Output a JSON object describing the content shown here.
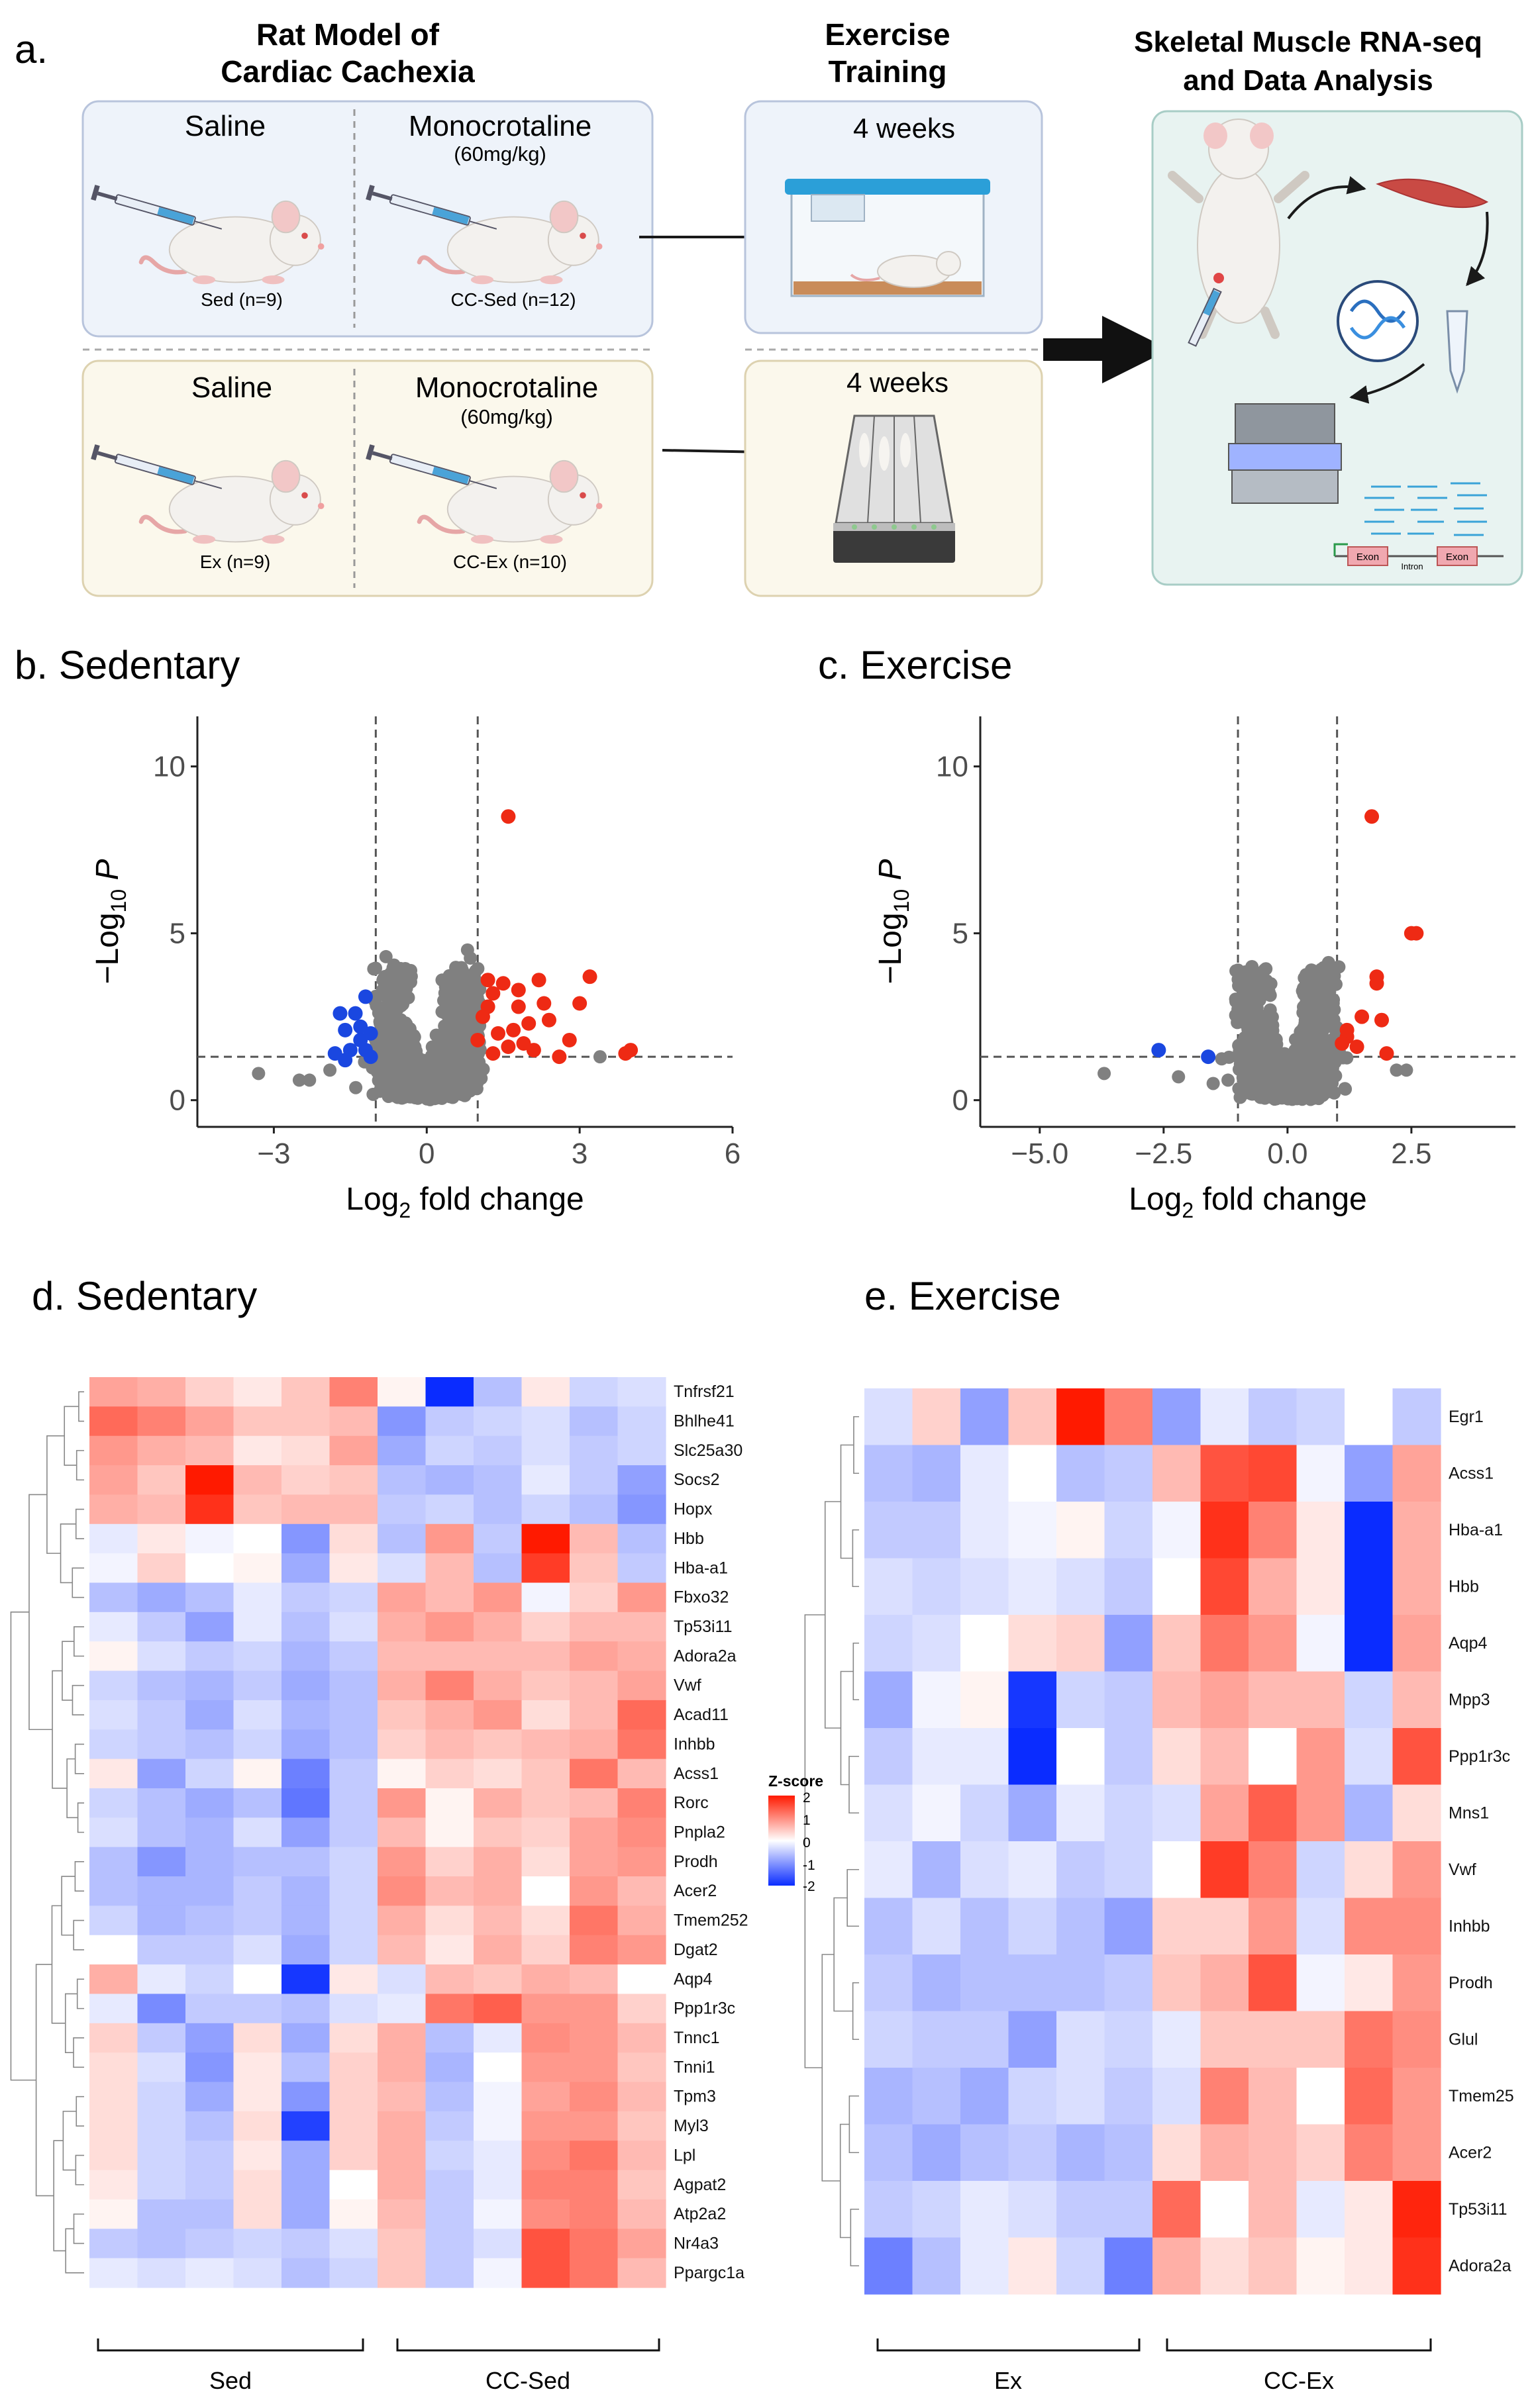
{
  "panel_a": {
    "label": "a.",
    "title_model": "Rat Model of\nCardiac Cachexia",
    "title_exercise": "Exercise\nTraining",
    "title_rnaseq": "Skeletal Muscle RNA-seq\nand Data Analysis",
    "top": {
      "left_name": "Saline",
      "left_n": "Sed (n=9)",
      "right_name": "Monocrotaline",
      "right_dose": "(60mg/kg)",
      "right_n": "CC-Sed (n=12)",
      "weeks": "4 weeks"
    },
    "bottom": {
      "left_name": "Saline",
      "left_n": "Ex (n=9)",
      "right_name": "Monocrotaline",
      "right_dose": "(60mg/kg)",
      "right_n": "CC-Ex (n=10)",
      "weeks": "4 weeks"
    },
    "exon_label": "Exon",
    "intron_label": "Intron",
    "colors": {
      "top_fill": "#eef3fa",
      "top_border": "#b8c4dc",
      "bottom_fill": "#fbf8ec",
      "bottom_border": "#ddd2b0",
      "right_fill": "#e8f3f1",
      "right_border": "#a8cdc6"
    }
  },
  "panel_b": {
    "label": "b. Sedentary"
  },
  "panel_c": {
    "label": "c. Exercise"
  },
  "panel_d": {
    "label": "d. Sedentary",
    "group1": "Sed",
    "group2": "CC-Sed"
  },
  "panel_e": {
    "label": "e. Exercise",
    "group1": "Ex",
    "group2": "CC-Ex"
  },
  "chart_data": [
    {
      "id": "volcano_sedentary",
      "type": "scatter",
      "xlabel": "Log2 fold change",
      "ylabel": "-Log10 P",
      "xlim": [
        -4.5,
        6
      ],
      "ylim": [
        -0.8,
        11.5
      ],
      "xticks": [
        -3,
        0,
        3,
        6
      ],
      "yticks": [
        0,
        5,
        10
      ],
      "vlines": [
        -1,
        1
      ],
      "hline": 1.3,
      "colors": {
        "ns": "#808080",
        "down": "#1a47e0",
        "up": "#ee2a14"
      },
      "down_points": [
        [
          -1.4,
          2.6
        ],
        [
          -1.2,
          3.1
        ],
        [
          -1.6,
          2.1
        ],
        [
          -1.3,
          1.8
        ],
        [
          -1.5,
          1.5
        ],
        [
          -1.8,
          1.4
        ],
        [
          -1.2,
          1.5
        ],
        [
          -1.1,
          2.0
        ],
        [
          -1.7,
          2.6
        ],
        [
          -1.3,
          2.2
        ],
        [
          -1.6,
          1.2
        ],
        [
          -1.1,
          1.3
        ]
      ],
      "up_points": [
        [
          1.6,
          8.5
        ],
        [
          3.2,
          3.7
        ],
        [
          3.0,
          2.9
        ],
        [
          4.0,
          1.5
        ],
        [
          3.9,
          1.4
        ],
        [
          2.2,
          3.6
        ],
        [
          2.3,
          2.9
        ],
        [
          1.5,
          3.5
        ],
        [
          1.3,
          3.2
        ],
        [
          1.8,
          2.8
        ],
        [
          2.0,
          2.3
        ],
        [
          1.1,
          2.5
        ],
        [
          1.2,
          3.6
        ],
        [
          1.7,
          2.1
        ],
        [
          1.4,
          2.0
        ],
        [
          1.9,
          1.7
        ],
        [
          2.1,
          1.5
        ],
        [
          2.6,
          1.3
        ],
        [
          2.8,
          1.8
        ],
        [
          1.0,
          1.8
        ],
        [
          1.3,
          1.4
        ],
        [
          1.6,
          1.6
        ],
        [
          2.4,
          2.4
        ],
        [
          1.2,
          2.8
        ],
        [
          1.8,
          3.3
        ]
      ],
      "ns_extra": [
        [
          -3.3,
          0.8
        ],
        [
          -2.5,
          0.6
        ],
        [
          -2.3,
          0.6
        ],
        [
          -1.9,
          0.9
        ],
        [
          3.4,
          1.3
        ],
        [
          -0.8,
          4.3
        ],
        [
          0.8,
          4.5
        ],
        [
          -0.6,
          3.8
        ],
        [
          0.6,
          3.9
        ]
      ]
    },
    {
      "id": "volcano_exercise",
      "type": "scatter",
      "xlabel": "Log2 fold change",
      "ylabel": "-Log10 P",
      "xlim": [
        -6.2,
        4.6
      ],
      "ylim": [
        -0.8,
        11.5
      ],
      "xticks": [
        -5.0,
        -2.5,
        0.0,
        2.5
      ],
      "yticks": [
        0,
        5,
        10
      ],
      "vlines": [
        -1,
        1
      ],
      "hline": 1.3,
      "colors": {
        "ns": "#808080",
        "down": "#1a47e0",
        "up": "#ee2a14"
      },
      "down_points": [
        [
          -2.6,
          1.5
        ],
        [
          -1.6,
          1.3
        ]
      ],
      "up_points": [
        [
          1.7,
          8.5
        ],
        [
          2.5,
          5.0
        ],
        [
          2.6,
          5.0
        ],
        [
          1.8,
          3.7
        ],
        [
          1.8,
          3.5
        ],
        [
          1.5,
          2.5
        ],
        [
          1.9,
          2.4
        ],
        [
          1.2,
          1.9
        ],
        [
          1.4,
          1.6
        ],
        [
          2.0,
          1.4
        ],
        [
          1.1,
          1.7
        ],
        [
          1.2,
          2.1
        ]
      ],
      "ns_extra": [
        [
          -3.7,
          0.8
        ],
        [
          -2.2,
          0.7
        ],
        [
          -1.5,
          0.5
        ],
        [
          -1.2,
          0.6
        ],
        [
          0.8,
          3.7
        ],
        [
          -0.6,
          3.1
        ],
        [
          0.6,
          3.3
        ],
        [
          2.2,
          0.9
        ],
        [
          2.4,
          0.9
        ]
      ]
    },
    {
      "id": "heatmap_sedentary",
      "type": "heatmap",
      "legend_title": "Z-score",
      "legend_ticks": [
        "2",
        "1",
        "0",
        "-1",
        "-2"
      ],
      "colors": {
        "low": "#0a2cff",
        "mid": "#ffffff",
        "high": "#ff1a00"
      },
      "genes": [
        "Tnfrsf21",
        "Bhlhe41",
        "Slc25a30",
        "Socs2",
        "Hopx",
        "Hbb",
        "Hba-a1",
        "Fbxo32",
        "Tp53i11",
        "Adora2a",
        "Vwf",
        "Acad11",
        "Inhbb",
        "Acss1",
        "Rorc",
        "Pnpla2",
        "Prodh",
        "Acer2",
        "Tmem252",
        "Dgat2",
        "Aqp4",
        "Ppp1r3c",
        "Tnnc1",
        "Tnni1",
        "Tpm3",
        "Myl3",
        "Lpl",
        "Agpat2",
        "Atp2a2",
        "Nr4a3",
        "Ppargc1a"
      ],
      "values": [
        [
          0.8,
          0.7,
          0.4,
          0.2,
          0.5,
          1.1,
          0.1,
          -2.2,
          -0.6,
          0.2,
          -0.4,
          -0.3
        ],
        [
          1.3,
          1.1,
          0.8,
          0.5,
          0.5,
          0.6,
          -1.0,
          -0.5,
          -0.4,
          -0.3,
          -0.6,
          -0.4
        ],
        [
          0.9,
          0.7,
          0.6,
          0.2,
          0.3,
          0.8,
          -0.8,
          -0.4,
          -0.5,
          -0.3,
          -0.5,
          -0.4
        ],
        [
          0.8,
          0.5,
          2.0,
          0.6,
          0.4,
          0.5,
          -0.6,
          -0.7,
          -0.6,
          -0.2,
          -0.5,
          -0.9
        ],
        [
          0.7,
          0.6,
          1.8,
          0.5,
          0.6,
          0.6,
          -0.5,
          -0.4,
          -0.6,
          -0.4,
          -0.6,
          -1.0
        ],
        [
          -0.2,
          0.2,
          -0.1,
          0.0,
          -1.0,
          0.3,
          -0.6,
          0.9,
          -0.5,
          2.0,
          0.6,
          -0.6
        ],
        [
          -0.1,
          0.4,
          0.0,
          0.1,
          -0.8,
          0.2,
          -0.3,
          0.6,
          -0.6,
          1.7,
          0.5,
          -0.5
        ],
        [
          -0.6,
          -0.8,
          -0.6,
          -0.2,
          -0.5,
          -0.4,
          0.8,
          0.6,
          0.9,
          -0.1,
          0.4,
          0.9
        ],
        [
          -0.2,
          -0.5,
          -0.9,
          -0.2,
          -0.6,
          -0.3,
          0.7,
          0.9,
          0.7,
          0.4,
          0.6,
          0.6
        ],
        [
          0.1,
          -0.3,
          -0.5,
          -0.4,
          -0.7,
          -0.5,
          0.6,
          0.6,
          0.6,
          0.6,
          0.8,
          0.7
        ],
        [
          -0.4,
          -0.6,
          -0.7,
          -0.5,
          -0.8,
          -0.6,
          0.7,
          1.1,
          0.7,
          0.5,
          0.6,
          0.8
        ],
        [
          -0.3,
          -0.5,
          -0.8,
          -0.3,
          -0.7,
          -0.6,
          0.5,
          0.7,
          0.9,
          0.3,
          0.6,
          1.3
        ],
        [
          -0.4,
          -0.5,
          -0.6,
          -0.4,
          -0.8,
          -0.6,
          0.4,
          0.6,
          0.5,
          0.6,
          0.7,
          1.2
        ],
        [
          0.2,
          -0.9,
          -0.4,
          0.1,
          -1.2,
          -0.5,
          0.1,
          0.4,
          0.3,
          0.5,
          1.2,
          0.6
        ],
        [
          -0.4,
          -0.6,
          -0.8,
          -0.6,
          -1.3,
          -0.5,
          0.9,
          0.1,
          0.7,
          0.5,
          0.6,
          1.1
        ],
        [
          -0.3,
          -0.6,
          -0.7,
          -0.3,
          -0.9,
          -0.5,
          0.6,
          0.1,
          0.5,
          0.4,
          0.8,
          1.0
        ],
        [
          -0.6,
          -1.0,
          -0.7,
          -0.6,
          -0.6,
          -0.4,
          0.9,
          0.4,
          0.7,
          0.3,
          0.8,
          0.9
        ],
        [
          -0.6,
          -0.7,
          -0.7,
          -0.5,
          -0.7,
          -0.4,
          1.0,
          0.6,
          0.7,
          0.0,
          0.9,
          0.6
        ],
        [
          -0.4,
          -0.7,
          -0.6,
          -0.5,
          -0.7,
          -0.4,
          0.7,
          0.3,
          0.6,
          0.3,
          1.2,
          0.7
        ],
        [
          0.0,
          -0.5,
          -0.5,
          -0.3,
          -0.8,
          -0.4,
          0.6,
          0.2,
          0.7,
          0.4,
          1.1,
          0.9
        ],
        [
          0.7,
          -0.2,
          -0.4,
          0.0,
          -1.9,
          0.2,
          -0.3,
          0.6,
          0.5,
          0.7,
          0.6,
          0.0
        ],
        [
          -0.2,
          -1.1,
          -0.5,
          -0.5,
          -0.6,
          -0.3,
          -0.2,
          1.2,
          1.4,
          0.9,
          0.9,
          0.4
        ],
        [
          0.4,
          -0.5,
          -0.9,
          0.3,
          -0.8,
          0.3,
          0.7,
          -0.6,
          -0.2,
          1.0,
          0.9,
          0.6
        ],
        [
          0.3,
          -0.3,
          -1.0,
          0.2,
          -0.6,
          0.4,
          0.7,
          -0.7,
          0.0,
          0.9,
          0.9,
          0.5
        ],
        [
          0.3,
          -0.4,
          -0.8,
          0.2,
          -1.0,
          0.4,
          0.6,
          -0.6,
          -0.1,
          0.8,
          1.0,
          0.6
        ],
        [
          0.3,
          -0.4,
          -0.6,
          0.3,
          -1.8,
          0.4,
          0.7,
          -0.5,
          -0.1,
          0.9,
          0.9,
          0.5
        ],
        [
          0.3,
          -0.4,
          -0.5,
          0.2,
          -0.8,
          0.4,
          0.7,
          -0.4,
          -0.2,
          1.0,
          1.2,
          0.6
        ],
        [
          0.2,
          -0.4,
          -0.5,
          0.3,
          -0.8,
          0.0,
          0.7,
          -0.5,
          -0.2,
          1.1,
          1.1,
          0.5
        ],
        [
          0.1,
          -0.6,
          -0.6,
          0.3,
          -0.8,
          0.1,
          0.6,
          -0.5,
          -0.1,
          1.0,
          1.1,
          0.6
        ],
        [
          -0.5,
          -0.6,
          -0.5,
          -0.4,
          -0.5,
          -0.3,
          0.5,
          -0.5,
          -0.3,
          1.5,
          1.2,
          0.8
        ],
        [
          -0.2,
          -0.3,
          -0.2,
          -0.3,
          -0.6,
          -0.4,
          0.5,
          -0.5,
          -0.1,
          1.5,
          1.2,
          0.6
        ]
      ]
    },
    {
      "id": "heatmap_exercise",
      "type": "heatmap",
      "colors": {
        "low": "#0a2cff",
        "mid": "#ffffff",
        "high": "#ff1a00"
      },
      "genes": [
        "Egr1",
        "Acss1",
        "Hba-a1",
        "Hbb",
        "Aqp4",
        "Mpp3",
        "Ppp1r3c",
        "Mns1",
        "Vwf",
        "Inhbb",
        "Prodh",
        "Glul",
        "Tmem25",
        "Acer2",
        "Tp53i11",
        "Adora2a"
      ],
      "values": [
        [
          -0.3,
          0.4,
          -0.9,
          0.5,
          2.0,
          1.1,
          -0.9,
          -0.2,
          -0.5,
          -0.4,
          0.0,
          -0.5
        ],
        [
          -0.6,
          -0.7,
          -0.2,
          0.0,
          -0.6,
          -0.5,
          0.6,
          1.5,
          1.6,
          -0.1,
          -0.9,
          0.8
        ],
        [
          -0.5,
          -0.5,
          -0.2,
          -0.1,
          0.1,
          -0.4,
          -0.1,
          1.8,
          1.1,
          0.2,
          -2.1,
          0.7
        ],
        [
          -0.3,
          -0.4,
          -0.3,
          -0.2,
          -0.3,
          -0.5,
          0.0,
          1.6,
          0.7,
          0.2,
          -2.1,
          0.7
        ],
        [
          -0.4,
          -0.3,
          0.0,
          0.3,
          0.4,
          -0.9,
          0.5,
          1.2,
          0.9,
          -0.1,
          -2.2,
          0.8
        ],
        [
          -0.8,
          -0.1,
          0.1,
          -1.9,
          -0.4,
          -0.5,
          0.6,
          0.8,
          0.6,
          0.6,
          -0.4,
          0.6
        ],
        [
          -0.5,
          -0.2,
          -0.2,
          -2.3,
          0.0,
          -0.5,
          0.3,
          0.6,
          0.0,
          0.9,
          -0.3,
          1.5
        ],
        [
          -0.3,
          -0.1,
          -0.4,
          -0.8,
          -0.2,
          -0.4,
          -0.3,
          0.8,
          1.4,
          0.9,
          -0.7,
          0.3
        ],
        [
          -0.2,
          -0.7,
          -0.3,
          -0.2,
          -0.5,
          -0.4,
          0.0,
          1.7,
          1.1,
          -0.4,
          0.3,
          0.9
        ],
        [
          -0.6,
          -0.3,
          -0.6,
          -0.4,
          -0.6,
          -0.9,
          0.4,
          0.4,
          0.9,
          -0.3,
          1.0,
          1.0
        ],
        [
          -0.5,
          -0.7,
          -0.6,
          -0.6,
          -0.6,
          -0.5,
          0.5,
          0.7,
          1.5,
          -0.1,
          0.2,
          0.9
        ],
        [
          -0.4,
          -0.5,
          -0.5,
          -0.9,
          -0.3,
          -0.4,
          -0.2,
          0.5,
          0.5,
          0.5,
          1.2,
          1.0
        ],
        [
          -0.7,
          -0.6,
          -0.8,
          -0.4,
          -0.3,
          -0.5,
          -0.3,
          1.1,
          0.6,
          0.0,
          1.3,
          0.9
        ],
        [
          -0.6,
          -0.8,
          -0.6,
          -0.5,
          -0.7,
          -0.6,
          0.3,
          0.7,
          0.6,
          0.4,
          1.1,
          0.9
        ],
        [
          -0.5,
          -0.4,
          -0.2,
          -0.3,
          -0.5,
          -0.5,
          1.3,
          0.0,
          0.6,
          -0.2,
          0.2,
          1.9
        ],
        [
          -1.2,
          -0.6,
          -0.2,
          0.2,
          -0.4,
          -1.2,
          0.7,
          0.3,
          0.5,
          0.1,
          0.2,
          1.8
        ]
      ]
    }
  ]
}
